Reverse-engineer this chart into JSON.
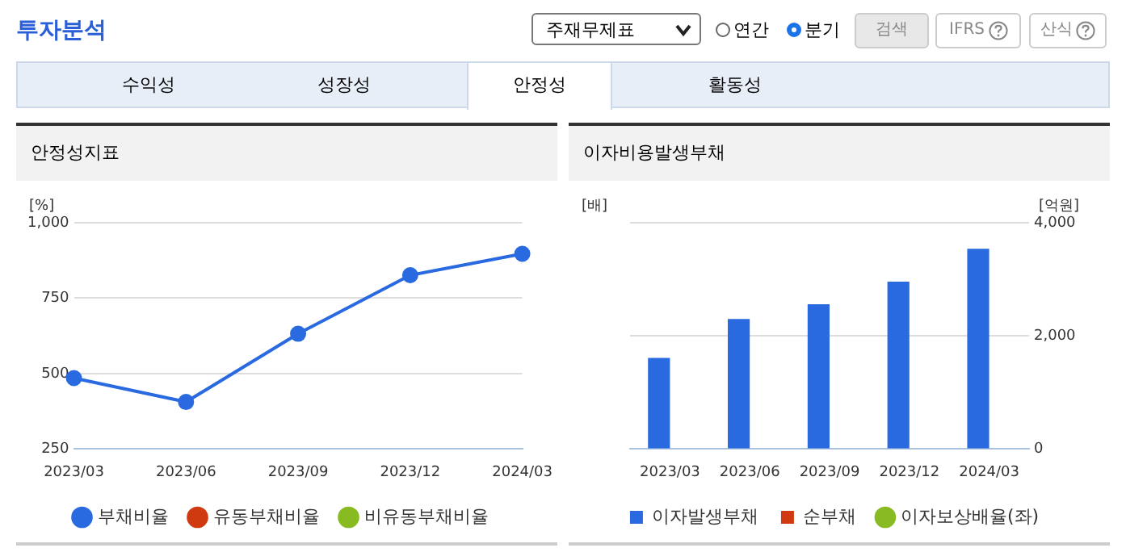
{
  "chart_data": [
    {
      "type": "other",
      "title": "투자분석",
      "annotations": [
        "주재무제표",
        "연간",
        "분기",
        "검색",
        "IFRS",
        "산식",
        "수익성",
        "성장성",
        "안정성",
        "활동성"
      ]
    },
    {
      "type": "line",
      "title": "안정성지표",
      "ylabel": "[%]",
      "categories": [
        "2023/03",
        "2023/06",
        "2023/09",
        "2023/12",
        "2024/03"
      ],
      "series": [
        {
          "name": "부채비율",
          "color": "#2a6ae0",
          "values": [
            485,
            406,
            632,
            826,
            897
          ]
        },
        {
          "name": "유동부채비율",
          "color": "#d03a10",
          "values": [
            null,
            null,
            null,
            null,
            null
          ]
        },
        {
          "name": "비유동부채비율",
          "color": "#88bb22",
          "values": [
            null,
            null,
            null,
            null,
            null
          ]
        }
      ],
      "ylim": [
        250,
        1000
      ],
      "yticks": [
        250,
        500,
        750,
        {
          "value": 1000,
          "label": "1,000"
        }
      ],
      "grid": "y",
      "legend": "bottom",
      "marker": "circle"
    },
    {
      "type": "bar",
      "title": "이자비용발생부채",
      "ylabel": "[배]",
      "y2label": "[억원]",
      "categories": [
        "2023/03",
        "2023/06",
        "2023/09",
        "2023/12",
        "2024/03"
      ],
      "series": [
        {
          "name": "이자발생부채",
          "color": "#2a6ae0",
          "values": [
            1610,
            2300,
            2560,
            2960,
            3540
          ],
          "axis": "y2"
        },
        {
          "name": "순부채",
          "color": "#d03a10",
          "values": [
            null,
            null,
            null,
            null,
            null
          ],
          "axis": "y2"
        },
        {
          "name": "이자보상배율(좌)",
          "type": "line",
          "color": "#88bb22",
          "values": [
            null,
            null,
            null,
            null,
            null
          ]
        }
      ],
      "y2lim": [
        0,
        4000
      ],
      "y2ticks": [
        0,
        {
          "value": 2000,
          "label": "2,000"
        },
        {
          "value": 4000,
          "label": "4,000"
        }
      ],
      "grid": "y",
      "legend": "bottom"
    }
  ]
}
